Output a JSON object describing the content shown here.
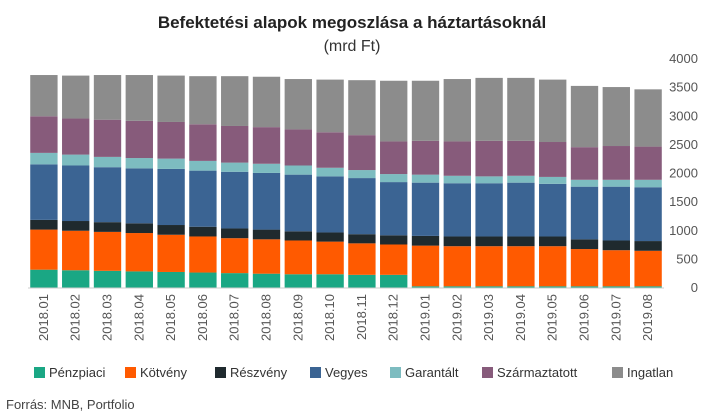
{
  "chart_data": {
    "type": "bar",
    "stacked": true,
    "title": "Befektetési alapok megoszlása a háztartásoknál",
    "subtitle": "(mrd Ft)",
    "source": "Forrás: MNB, Portfolio",
    "ylim": [
      0,
      4000
    ],
    "yticks": [
      0,
      500,
      1000,
      1500,
      2000,
      2500,
      3000,
      3500,
      4000
    ],
    "y_axis_side": "right",
    "grid": false,
    "legend_position": "bottom",
    "categories": [
      "2018.01",
      "2018.02",
      "2018.03",
      "2018.04",
      "2018.05",
      "2018.06",
      "2018.07",
      "2018.08",
      "2018.09",
      "2018.10",
      "2018.11",
      "2018.12",
      "2019.01",
      "2019.02",
      "2019.03",
      "2019.04",
      "2019.05",
      "2019.06",
      "2019.07",
      "2019.08"
    ],
    "series": [
      {
        "name": "Pénzpiaci",
        "color": "#1aa784",
        "values": [
          320,
          310,
          300,
          290,
          280,
          270,
          260,
          250,
          240,
          240,
          230,
          230,
          30,
          30,
          30,
          30,
          30,
          30,
          30,
          30
        ]
      },
      {
        "name": "Kötvény",
        "color": "#ff5a00",
        "values": [
          700,
          690,
          680,
          670,
          650,
          630,
          610,
          600,
          590,
          570,
          550,
          530,
          710,
          700,
          700,
          700,
          700,
          650,
          630,
          620
        ]
      },
      {
        "name": "Részvény",
        "color": "#1f2a2e",
        "values": [
          170,
          170,
          170,
          170,
          170,
          170,
          170,
          170,
          160,
          160,
          160,
          160,
          170,
          170,
          170,
          170,
          170,
          170,
          170,
          170
        ]
      },
      {
        "name": "Vegyes",
        "color": "#3b6493",
        "values": [
          970,
          970,
          960,
          960,
          980,
          980,
          990,
          990,
          990,
          980,
          980,
          930,
          930,
          930,
          930,
          940,
          920,
          920,
          940,
          940
        ]
      },
      {
        "name": "Garantált",
        "color": "#7dbcc0",
        "values": [
          200,
          190,
          180,
          180,
          180,
          170,
          160,
          160,
          160,
          150,
          140,
          140,
          140,
          130,
          120,
          120,
          120,
          120,
          120,
          130
        ]
      },
      {
        "name": "Származtatott",
        "color": "#875b7b",
        "values": [
          640,
          630,
          650,
          650,
          640,
          640,
          640,
          640,
          630,
          620,
          610,
          570,
          590,
          600,
          620,
          610,
          610,
          570,
          590,
          580
        ]
      },
      {
        "name": "Ingatlan",
        "color": "#8c8c8c",
        "values": [
          720,
          750,
          780,
          800,
          810,
          840,
          870,
          880,
          880,
          920,
          960,
          1060,
          1050,
          1090,
          1100,
          1100,
          1090,
          1070,
          1030,
          1000
        ]
      }
    ]
  }
}
